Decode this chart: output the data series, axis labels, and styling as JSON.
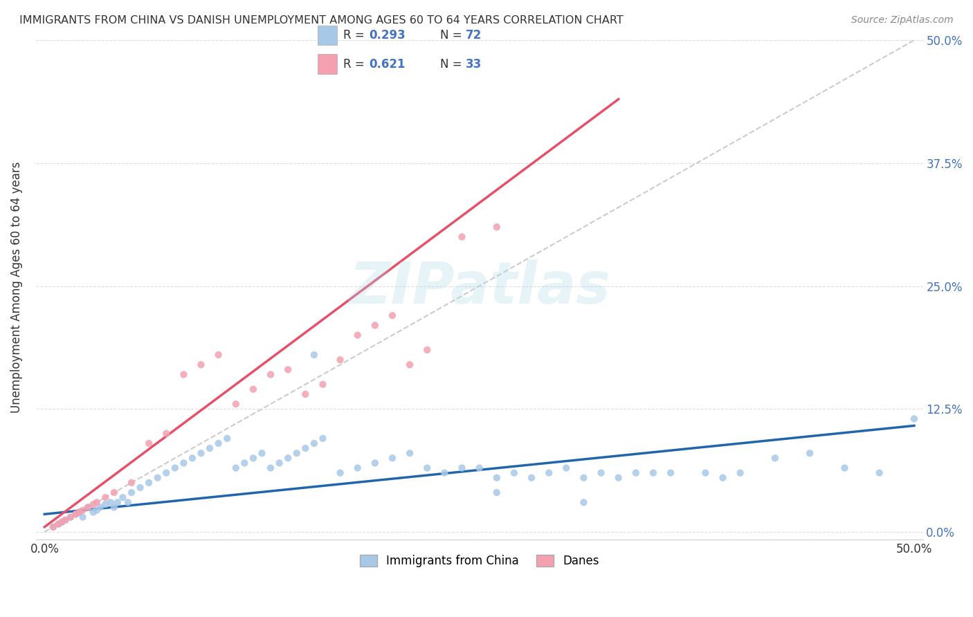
{
  "title": "IMMIGRANTS FROM CHINA VS DANISH UNEMPLOYMENT AMONG AGES 60 TO 64 YEARS CORRELATION CHART",
  "source": "Source: ZipAtlas.com",
  "ylabel": "Unemployment Among Ages 60 to 64 years",
  "yticks_labels": [
    "0.0%",
    "12.5%",
    "25.0%",
    "37.5%",
    "50.0%"
  ],
  "ytick_vals": [
    0.0,
    0.125,
    0.25,
    0.375,
    0.5
  ],
  "xlim": [
    0.0,
    0.5
  ],
  "ylim": [
    0.0,
    0.5
  ],
  "blue_color": "#a8c8e8",
  "pink_color": "#f4a0b0",
  "blue_line_color": "#2166ac",
  "pink_line_color": "#e8506a",
  "diagonal_color": "#cccccc",
  "watermark": "ZIPatlas",
  "blue_scatter_x": [
    0.005,
    0.008,
    0.01,
    0.012,
    0.015,
    0.018,
    0.02,
    0.022,
    0.025,
    0.028,
    0.03,
    0.032,
    0.035,
    0.038,
    0.04,
    0.042,
    0.045,
    0.048,
    0.05,
    0.055,
    0.06,
    0.065,
    0.07,
    0.075,
    0.08,
    0.085,
    0.09,
    0.095,
    0.1,
    0.105,
    0.11,
    0.115,
    0.12,
    0.125,
    0.13,
    0.135,
    0.14,
    0.145,
    0.15,
    0.155,
    0.16,
    0.17,
    0.18,
    0.19,
    0.2,
    0.21,
    0.22,
    0.23,
    0.24,
    0.25,
    0.26,
    0.27,
    0.28,
    0.29,
    0.3,
    0.31,
    0.32,
    0.33,
    0.34,
    0.35,
    0.36,
    0.38,
    0.39,
    0.4,
    0.42,
    0.44,
    0.46,
    0.48,
    0.5,
    0.31,
    0.26,
    0.155
  ],
  "blue_scatter_y": [
    0.005,
    0.008,
    0.01,
    0.012,
    0.015,
    0.018,
    0.02,
    0.015,
    0.025,
    0.02,
    0.022,
    0.025,
    0.028,
    0.03,
    0.025,
    0.03,
    0.035,
    0.03,
    0.04,
    0.045,
    0.05,
    0.055,
    0.06,
    0.065,
    0.07,
    0.075,
    0.08,
    0.085,
    0.09,
    0.095,
    0.065,
    0.07,
    0.075,
    0.08,
    0.065,
    0.07,
    0.075,
    0.08,
    0.085,
    0.09,
    0.095,
    0.06,
    0.065,
    0.07,
    0.075,
    0.08,
    0.065,
    0.06,
    0.065,
    0.065,
    0.055,
    0.06,
    0.055,
    0.06,
    0.065,
    0.055,
    0.06,
    0.055,
    0.06,
    0.06,
    0.06,
    0.06,
    0.055,
    0.06,
    0.075,
    0.08,
    0.065,
    0.06,
    0.115,
    0.03,
    0.04,
    0.18
  ],
  "pink_scatter_x": [
    0.005,
    0.008,
    0.01,
    0.012,
    0.015,
    0.018,
    0.02,
    0.022,
    0.025,
    0.028,
    0.03,
    0.035,
    0.04,
    0.05,
    0.06,
    0.07,
    0.08,
    0.09,
    0.1,
    0.11,
    0.12,
    0.13,
    0.14,
    0.15,
    0.16,
    0.17,
    0.18,
    0.19,
    0.2,
    0.21,
    0.22,
    0.24,
    0.26
  ],
  "pink_scatter_y": [
    0.005,
    0.008,
    0.01,
    0.012,
    0.015,
    0.018,
    0.02,
    0.022,
    0.025,
    0.028,
    0.03,
    0.035,
    0.04,
    0.05,
    0.09,
    0.1,
    0.16,
    0.17,
    0.18,
    0.13,
    0.145,
    0.16,
    0.165,
    0.14,
    0.15,
    0.175,
    0.2,
    0.21,
    0.22,
    0.17,
    0.185,
    0.3,
    0.31
  ],
  "blue_line_x": [
    0.0,
    0.5
  ],
  "blue_line_y": [
    0.018,
    0.108
  ],
  "pink_line_x": [
    0.0,
    0.33
  ],
  "pink_line_y": [
    0.005,
    0.44
  ]
}
